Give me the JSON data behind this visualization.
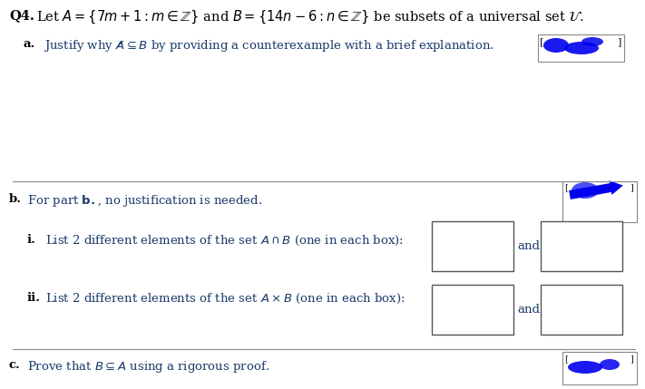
{
  "background_color": "#ffffff",
  "text_color_blue": "#1a3a6b",
  "text_color_black": "#000000",
  "line_color": "#888888",
  "font_size_title": 10.5,
  "font_size_body": 9.5,
  "q4_label": "Q4.",
  "q4_text": " Let $A = \\{7m+1 : m \\in \\mathbb{Z}\\}$ and $B = \\{14n-6 : n \\in \\mathbb{Z}\\}$ be subsets of a universal set $\\mathcal{U}$.",
  "a_label": "a.",
  "a_text": "Justify why $A \\not\\subseteq B$ by providing a counterexample with a brief explanation.",
  "b_label": "b.",
  "b_text": "For part $\\mathbf{b.}$, no justification is needed.",
  "bi_label": "i.",
  "bi_text": "List 2 different elements of the set $A\\cap B$ (one in each box):",
  "bii_label": "ii.",
  "bii_text": "List 2 different elements of the set $A\\times B$ (one in each box):",
  "c_label": "c.",
  "c_text": "Prove that $B \\subseteq A$ using a rigorous proof.",
  "stamp_a_color": "#0000ee",
  "stamp_b_color": "#0000ee",
  "stamp_c_color": "#0000ee"
}
